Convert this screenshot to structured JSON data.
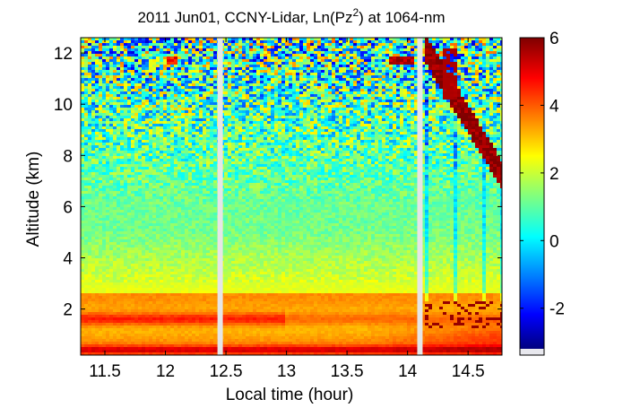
{
  "chart_data": {
    "type": "heatmap",
    "title": {
      "prefix": "2011 Jun01, CCNY-Lidar, Ln(Pz",
      "superscript": "2",
      "suffix": ") at 1064-nm"
    },
    "xlabel": "Local time (hour)",
    "ylabel": "Altitude (km)",
    "xlim": [
      11.3,
      14.78
    ],
    "ylim": [
      0.2,
      12.6
    ],
    "xticks": [
      {
        "value": 11.5,
        "label": "11.5"
      },
      {
        "value": 12,
        "label": "12"
      },
      {
        "value": 12.5,
        "label": "12.5"
      },
      {
        "value": 13,
        "label": "13"
      },
      {
        "value": 13.5,
        "label": "13.5"
      },
      {
        "value": 14,
        "label": "14"
      },
      {
        "value": 14.5,
        "label": "14.5"
      }
    ],
    "yticks": [
      {
        "value": 2,
        "label": "2"
      },
      {
        "value": 4,
        "label": "4"
      },
      {
        "value": 6,
        "label": "6"
      },
      {
        "value": 8,
        "label": "8"
      },
      {
        "value": 10,
        "label": "10"
      },
      {
        "value": 12,
        "label": "12"
      }
    ],
    "colorbar": {
      "colormap": "jet",
      "range": [
        -3.2,
        6
      ],
      "ticks": [
        {
          "value": -2,
          "label": "-2"
        },
        {
          "value": 0,
          "label": "0"
        },
        {
          "value": 2,
          "label": "2"
        },
        {
          "value": 4,
          "label": "4"
        },
        {
          "value": 6,
          "label": "6"
        }
      ]
    },
    "data_gaps": [
      {
        "start": 12.43,
        "end": 12.47
      },
      {
        "start": 14.08,
        "end": 14.12
      }
    ],
    "features": [
      {
        "name": "surface-aerosol-layer",
        "time_range": [
          11.3,
          14.78
        ],
        "altitude_range": [
          0.3,
          2.4
        ],
        "value_range": [
          3,
          5.5
        ]
      },
      {
        "name": "cirrus-cloud",
        "time_range": [
          14.15,
          14.78
        ],
        "altitude_range": [
          7.0,
          12.2
        ],
        "value_range": [
          5,
          6
        ]
      },
      {
        "name": "low-cloud-pbl-top",
        "time_range": [
          14.18,
          14.78
        ],
        "altitude_range": [
          1.3,
          2.3
        ],
        "value_range": [
          5,
          6
        ]
      },
      {
        "name": "upper-cloud-patch",
        "time_range": [
          13.85,
          14.05
        ],
        "altitude_range": [
          11.6,
          11.9
        ],
        "value_range": [
          4.5,
          6
        ]
      }
    ],
    "grid": false,
    "legend": "colorbar-right"
  }
}
